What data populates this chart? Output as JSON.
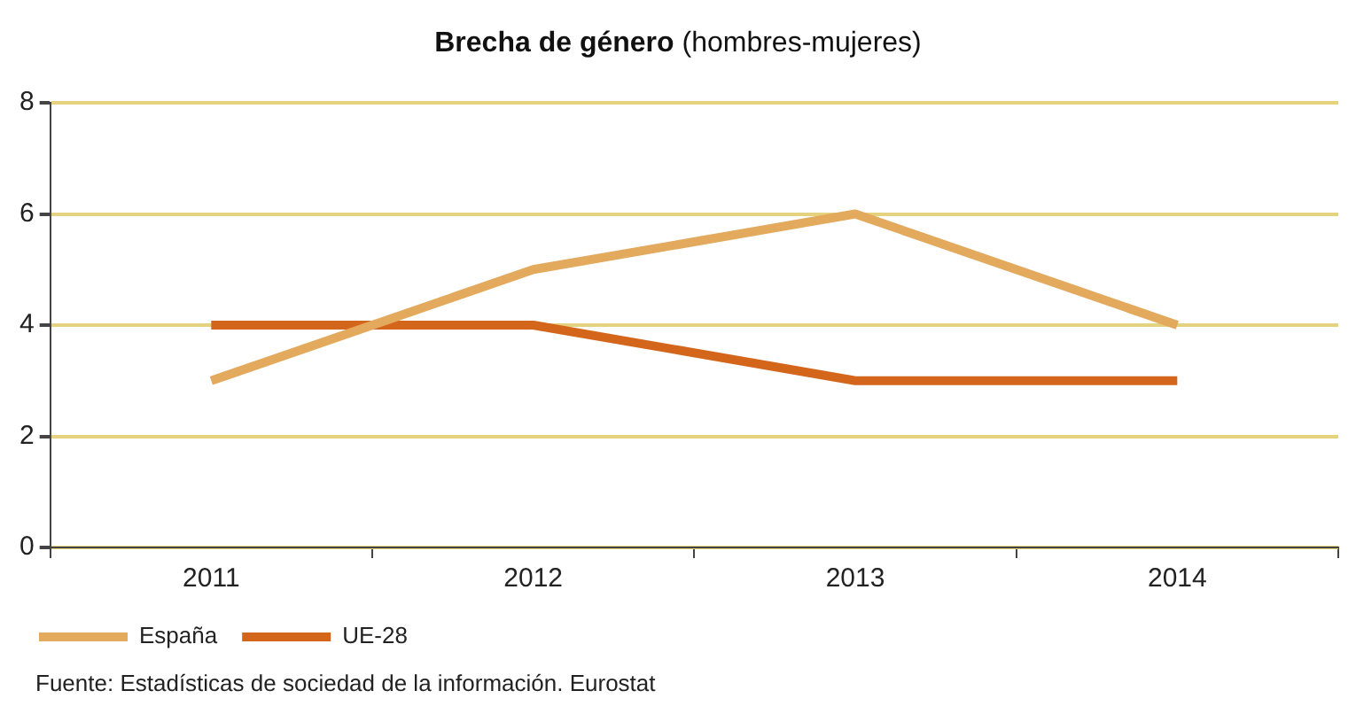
{
  "chart_data": {
    "type": "line",
    "title": "Brecha de género",
    "subtitle": "(hombres-mujeres)",
    "categories": [
      "2011",
      "2012",
      "2013",
      "2014"
    ],
    "series": [
      {
        "name": "España",
        "color": "#e3a95c",
        "values": [
          3,
          5,
          6,
          4
        ]
      },
      {
        "name": "UE-28",
        "color": "#d4661c",
        "values": [
          4,
          4,
          3,
          3
        ]
      }
    ],
    "ylim": [
      0,
      8
    ],
    "yticks": [
      0,
      2,
      4,
      6,
      8
    ],
    "grid": "y",
    "legend": "bottom left",
    "marker": "none",
    "line_style": "solid",
    "annotations": [
      "Fuente: Estadísticas de sociedad de la información. Eurostat"
    ]
  }
}
